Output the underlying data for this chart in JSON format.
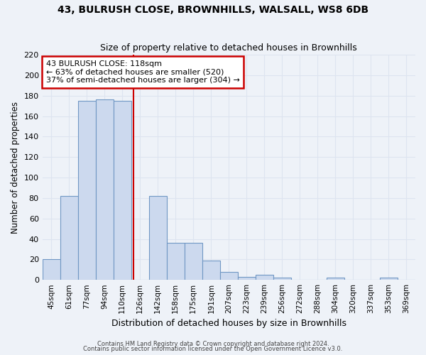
{
  "title_line1": "43, BULRUSH CLOSE, BROWNHILLS, WALSALL, WS8 6DB",
  "title_line2": "Size of property relative to detached houses in Brownhills",
  "xlabel": "Distribution of detached houses by size in Brownhills",
  "ylabel": "Number of detached properties",
  "bin_labels": [
    "45sqm",
    "61sqm",
    "77sqm",
    "94sqm",
    "110sqm",
    "126sqm",
    "142sqm",
    "158sqm",
    "175sqm",
    "191sqm",
    "207sqm",
    "223sqm",
    "239sqm",
    "256sqm",
    "272sqm",
    "288sqm",
    "304sqm",
    "320sqm",
    "337sqm",
    "353sqm",
    "369sqm"
  ],
  "bar_values": [
    20,
    82,
    175,
    176,
    175,
    0,
    82,
    36,
    36,
    19,
    8,
    3,
    5,
    2,
    0,
    0,
    2,
    0,
    0,
    2,
    0
  ],
  "bar_color": "#ccd9ee",
  "bar_edge_color": "#7097c4",
  "ylim": [
    0,
    220
  ],
  "yticks": [
    0,
    20,
    40,
    60,
    80,
    100,
    120,
    140,
    160,
    180,
    200,
    220
  ],
  "vline_x_index": 4.65,
  "annotation_title": "43 BULRUSH CLOSE: 118sqm",
  "annotation_line2": "← 63% of detached houses are smaller (520)",
  "annotation_line3": "37% of semi-detached houses are larger (304) →",
  "annotation_box_color": "#ffffff",
  "annotation_border_color": "#cc0000",
  "footer_line1": "Contains HM Land Registry data © Crown copyright and database right 2024.",
  "footer_line2": "Contains public sector information licensed under the Open Government Licence v3.0.",
  "background_color": "#eef2f8",
  "grid_color": "#dde4f0"
}
